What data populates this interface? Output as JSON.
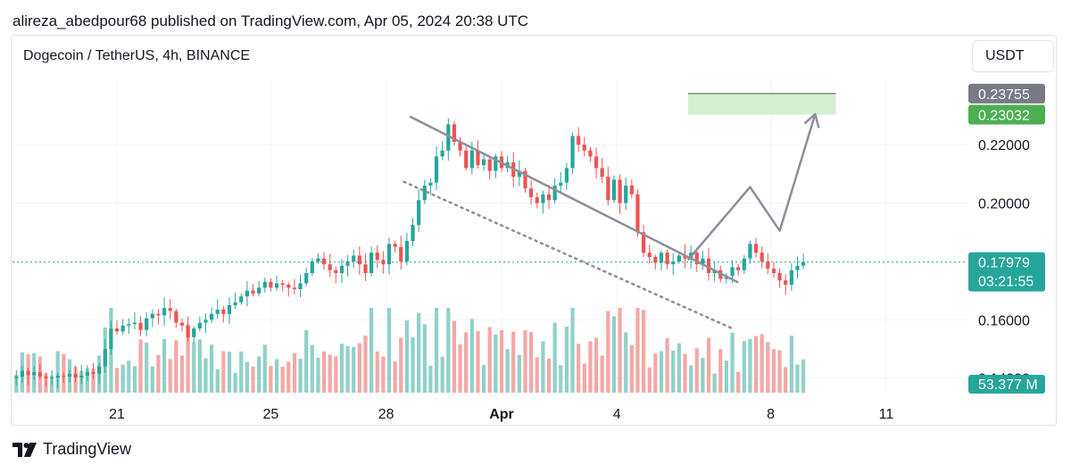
{
  "header": {
    "publisher_line": "alireza_abedpour68 published on TradingView.com, Apr 05, 2024 20:38 UTC",
    "symbol_line": "Dogecoin / TetherUS, 4h, BINANCE",
    "currency": "USDT"
  },
  "footer": {
    "brand": "TradingView"
  },
  "colors": {
    "up": "#26a69a",
    "down": "#ef5350",
    "vol_up": "#8fd1c9",
    "vol_down": "#f3a8a6",
    "trendline": "#8c8f9a",
    "target_zone": "#d6efd3",
    "target_label": "#4caf50",
    "upper_target_label": "#787b86",
    "price_line": "#26a69a"
  },
  "chart_data": {
    "type": "candlestick",
    "interval": "4h",
    "ylim": [
      0.135,
      0.243
    ],
    "y_ticks": [
      "0.14000",
      "0.16000",
      "0.20000",
      "0.22000"
    ],
    "x_ticks": [
      {
        "label": "21",
        "t": 17.5
      },
      {
        "label": "25",
        "t": 43.5
      },
      {
        "label": "28",
        "t": 63
      },
      {
        "label": "Apr",
        "t": 82.5
      },
      {
        "label": "4",
        "t": 102
      },
      {
        "label": "8",
        "t": 128
      },
      {
        "label": "11",
        "t": 147.5
      }
    ],
    "price_labels": [
      {
        "text": "0.23755",
        "value": 0.23755,
        "color": "#787b86"
      },
      {
        "text": "0.23032",
        "value": 0.23032,
        "color": "#4caf50"
      }
    ],
    "last_price": {
      "text": "0.17979",
      "value": 0.17979,
      "countdown": "03:21:55"
    },
    "volume_label": "53.377 M",
    "target_zone": {
      "t_start": 114,
      "t_end": 139,
      "top": 0.23755,
      "bottom": 0.23032
    },
    "descending_trendline": [
      {
        "t": 67,
        "price": 0.2297
      },
      {
        "t": 122.5,
        "price": 0.1728
      }
    ],
    "dotted_channel_line": [
      {
        "t": 66,
        "price": 0.2073
      },
      {
        "t": 121.5,
        "price": 0.157
      }
    ],
    "projection_path": [
      {
        "t": 114,
        "price": 0.1805
      },
      {
        "t": 124.5,
        "price": 0.2055
      },
      {
        "t": 129.5,
        "price": 0.1905
      },
      {
        "t": 135.5,
        "price": 0.2305
      }
    ],
    "close_prices": [
      0.1405,
      0.1425,
      0.141,
      0.142,
      0.1405,
      0.14,
      0.1402,
      0.1408,
      0.1405,
      0.1415,
      0.1402,
      0.1408,
      0.142,
      0.1415,
      0.144,
      0.15,
      0.157,
      0.156,
      0.158,
      0.1585,
      0.159,
      0.1565,
      0.1605,
      0.162,
      0.1615,
      0.164,
      0.163,
      0.159,
      0.158,
      0.154,
      0.157,
      0.159,
      0.16,
      0.162,
      0.1635,
      0.162,
      0.165,
      0.166,
      0.168,
      0.17,
      0.169,
      0.171,
      0.173,
      0.171,
      0.1725,
      0.172,
      0.171,
      0.1705,
      0.1725,
      0.176,
      0.18,
      0.181,
      0.179,
      0.177,
      0.176,
      0.1785,
      0.18,
      0.182,
      0.179,
      0.176,
      0.183,
      0.1805,
      0.179,
      0.186,
      0.185,
      0.18,
      0.187,
      0.1925,
      0.201,
      0.206,
      0.207,
      0.216,
      0.218,
      0.227,
      0.221,
      0.218,
      0.212,
      0.218,
      0.213,
      0.215,
      0.211,
      0.216,
      0.212,
      0.214,
      0.209,
      0.211,
      0.205,
      0.202,
      0.2,
      0.203,
      0.201,
      0.206,
      0.207,
      0.212,
      0.223,
      0.22,
      0.218,
      0.216,
      0.212,
      0.209,
      0.201,
      0.208,
      0.2,
      0.206,
      0.203,
      0.19,
      0.183,
      0.1815,
      0.1795,
      0.183,
      0.179,
      0.18,
      0.182,
      0.181,
      0.183,
      0.179,
      0.181,
      0.176,
      0.177,
      0.174,
      0.175,
      0.178,
      0.177,
      0.181,
      0.186,
      0.183,
      0.18,
      0.1775,
      0.176,
      0.1735,
      0.172,
      0.177,
      0.1785,
      0.1798
    ]
  }
}
